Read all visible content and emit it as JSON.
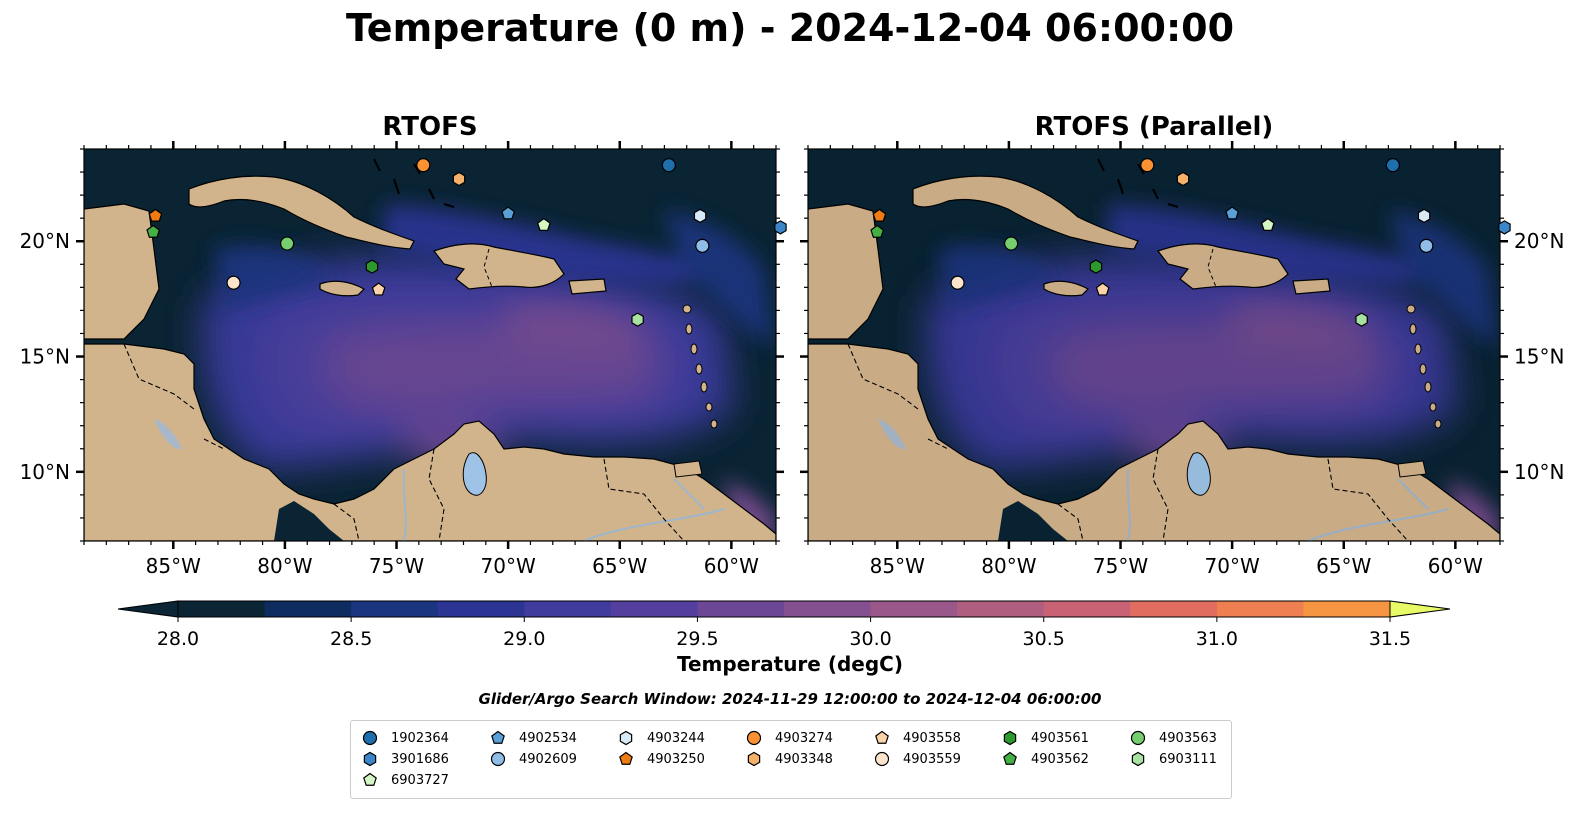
{
  "title": "Temperature (0 m) - 2024-12-04 06:00:00",
  "panels": [
    {
      "title": "RTOFS"
    },
    {
      "title": "RTOFS (Parallel)"
    }
  ],
  "map": {
    "lon_range": [
      -89,
      -58
    ],
    "lat_range": [
      7,
      24
    ],
    "lon_ticks": [
      -85,
      -80,
      -75,
      -70,
      -65,
      -60
    ],
    "lon_tick_labels": [
      "85°W",
      "80°W",
      "75°W",
      "70°W",
      "65°W",
      "60°W"
    ],
    "lat_ticks": [
      10,
      15,
      20
    ],
    "lat_tick_labels": [
      "10°N",
      "15°N",
      "20°N"
    ],
    "ocean_color": "#0a2433",
    "land_color": "#d2b48c",
    "lake_color": "#9ec3e6"
  },
  "colorbar": {
    "label": "Temperature (degC)",
    "min": 28.0,
    "max": 31.5,
    "step": 0.25,
    "ticks": [
      28.0,
      28.5,
      29.0,
      29.5,
      30.0,
      30.5,
      31.0,
      31.5
    ],
    "tick_labels": [
      "28.0",
      "28.5",
      "29.0",
      "29.5",
      "30.0",
      "30.5",
      "31.0",
      "31.5"
    ],
    "colors": [
      "#0b2535",
      "#0e2c60",
      "#1b3580",
      "#2c3594",
      "#3f3c9e",
      "#553f9e",
      "#6c4796",
      "#845090",
      "#995889",
      "#b05e80",
      "#c86274",
      "#e06d5f",
      "#ef7e50",
      "#f69541",
      "#f7b03d",
      "#f5cb48",
      "#f0e65c"
    ],
    "extend_low": "#0b2535",
    "extend_high": "#e8fa66"
  },
  "search_window": "Glider/Argo Search Window: 2024-11-29 12:00:00 to 2024-12-04 06:00:00",
  "floats": [
    {
      "id": "1902364",
      "marker": "circle",
      "color": "#1f6fad",
      "lon": -62.8,
      "lat": 23.3
    },
    {
      "id": "3901686",
      "marker": "hexagon",
      "color": "#3a86c8",
      "lon": -57.8,
      "lat": 20.6
    },
    {
      "id": "4902534",
      "marker": "pentagon",
      "color": "#5aa0d8",
      "lon": -70.0,
      "lat": 21.2
    },
    {
      "id": "4902609",
      "marker": "circle",
      "color": "#8fbde8",
      "lon": -61.3,
      "lat": 19.8
    },
    {
      "id": "4903244",
      "marker": "hexagon",
      "color": "#d6eaf8",
      "lon": -61.4,
      "lat": 21.1
    },
    {
      "id": "4903250",
      "marker": "pentagon",
      "color": "#f07b12",
      "lon": -85.8,
      "lat": 21.1
    },
    {
      "id": "4903274",
      "marker": "circle",
      "color": "#fa9233",
      "lon": -73.8,
      "lat": 23.3
    },
    {
      "id": "4903348",
      "marker": "hexagon",
      "color": "#f5b06a",
      "lon": -72.2,
      "lat": 22.7
    },
    {
      "id": "4903558",
      "marker": "pentagon",
      "color": "#fbd3a8",
      "lon": -75.8,
      "lat": 17.9
    },
    {
      "id": "4903559",
      "marker": "circle",
      "color": "#fce3cb",
      "lon": -82.3,
      "lat": 18.2
    },
    {
      "id": "4903561",
      "marker": "hexagon",
      "color": "#2e9a2e",
      "lon": -76.1,
      "lat": 18.9
    },
    {
      "id": "4903562",
      "marker": "pentagon",
      "color": "#44b044",
      "lon": -85.9,
      "lat": 20.4
    },
    {
      "id": "4903563",
      "marker": "circle",
      "color": "#76cf6e",
      "lon": -79.9,
      "lat": 19.9
    },
    {
      "id": "6903111",
      "marker": "hexagon",
      "color": "#a8e2a0",
      "lon": -64.2,
      "lat": 16.6
    },
    {
      "id": "6903727",
      "marker": "pentagon",
      "color": "#d4f5c4",
      "lon": -68.4,
      "lat": 20.7
    }
  ]
}
